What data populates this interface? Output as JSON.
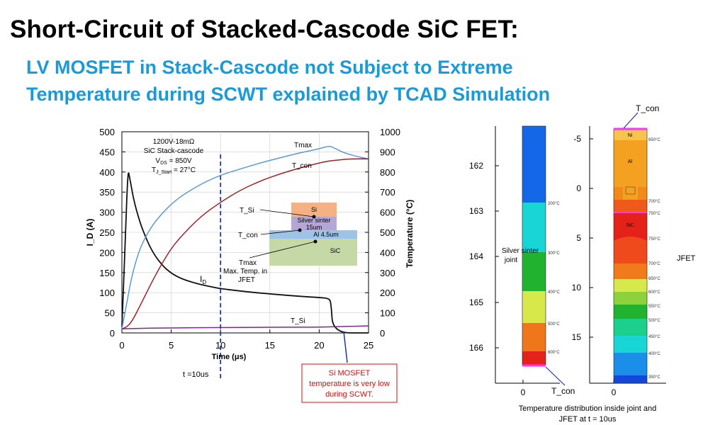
{
  "slide": {
    "title": "Short-Circuit of Stacked-Cascode SiC FET:",
    "subtitle_line1": "LV MOSFET in Stack-Cascode not Subject to Extreme",
    "subtitle_line2": "Temperature during SCWT explained by TCAD Simulation"
  },
  "colors": {
    "title": "#000000",
    "subtitle": "#1a9bd7",
    "id_curve": "#111111",
    "tmax_curve": "#5b9bd5",
    "tcon_curve": "#a0202a",
    "tsi_curve": "#7a2a8a",
    "marker_line": "#2233aa",
    "callout": "#d01010"
  },
  "chart_data": {
    "type": "line",
    "xlabel": "Time (μs)",
    "ylabel_left": "I_D (A)",
    "ylabel_right": "Temperature (°C)",
    "xlim": [
      0,
      25
    ],
    "ylim_left": [
      0,
      500
    ],
    "ylim_right": [
      0,
      1000
    ],
    "xticks": [
      0,
      5,
      10,
      15,
      20,
      25
    ],
    "yticks_left": [
      0,
      50,
      100,
      150,
      200,
      250,
      300,
      350,
      400,
      450,
      500
    ],
    "yticks_right": [
      0,
      100,
      200,
      300,
      400,
      500,
      600,
      700,
      800,
      900,
      1000
    ],
    "series": [
      {
        "name": "I_D",
        "axis": "left",
        "x": [
          0,
          0.3,
          0.6,
          0.8,
          1.2,
          1.7,
          2.2,
          3,
          4,
          5,
          6,
          7,
          8,
          9,
          10,
          12,
          14,
          16,
          18,
          20,
          21,
          21.2,
          21.4,
          25
        ],
        "y": [
          15,
          200,
          408,
          385,
          330,
          285,
          250,
          205,
          170,
          148,
          135,
          127,
          120,
          115,
          110,
          104,
          99,
          95,
          91,
          88,
          86,
          75,
          0,
          0
        ]
      },
      {
        "name": "Tmax",
        "axis": "right",
        "x": [
          0,
          0.5,
          1,
          1.5,
          2,
          3,
          4,
          5,
          6,
          8,
          10,
          12,
          14,
          16,
          18,
          20,
          21,
          21.5,
          22.5,
          24,
          25
        ],
        "y": [
          20,
          150,
          280,
          370,
          440,
          530,
          590,
          640,
          680,
          740,
          785,
          815,
          845,
          870,
          895,
          915,
          930,
          920,
          895,
          875,
          865
        ]
      },
      {
        "name": "T_con",
        "axis": "right",
        "x": [
          0,
          0.5,
          1,
          2,
          3,
          4,
          5,
          6,
          8,
          10,
          12,
          14,
          16,
          18,
          20,
          21,
          22,
          23,
          25
        ],
        "y": [
          20,
          30,
          55,
          150,
          250,
          340,
          420,
          480,
          580,
          650,
          710,
          755,
          790,
          820,
          845,
          855,
          860,
          865,
          865
        ]
      },
      {
        "name": "T_Si",
        "axis": "right",
        "x": [
          0,
          1,
          5,
          10,
          15,
          20,
          21,
          25
        ],
        "y": [
          20,
          22,
          25,
          27,
          28,
          29,
          30,
          35
        ]
      }
    ],
    "curve_labels": {
      "tmax": "Tmax",
      "tcon": "T_con",
      "id": "I",
      "id_sub": "D",
      "tsi": "T_Si"
    },
    "spec_box": {
      "line1": "1200V-18mΩ",
      "line2": "SiC Stack-cascode",
      "line3": "V",
      "line3_sub": "DS",
      "line3_rest": " = 850V",
      "line4": "T",
      "line4_sub": "J_Start",
      "line4_rest": " = 27°C"
    },
    "marker": {
      "x": 10,
      "label": "t =10us"
    },
    "callout": {
      "line1": "Si MOSFET",
      "line2": "temperature is very low",
      "line3": "during SCWT."
    },
    "inset_stack": {
      "layers": [
        "Si",
        "Silver sinter",
        "15um",
        "Al 4.5um",
        "SiC"
      ],
      "labels": [
        "T_Si",
        "T_con",
        "Tmax",
        "Max. Temp. in",
        "JFET"
      ]
    }
  },
  "joint_profile": {
    "yticks": [
      162,
      163,
      164,
      165,
      166
    ],
    "xtick": "0",
    "label": [
      "Silver sinter",
      "joint"
    ],
    "bands": [
      {
        "color": "#1468e8"
      },
      {
        "color": "#19d6d6"
      },
      {
        "color": "#21b330"
      },
      {
        "color": "#d6e84a"
      },
      {
        "color": "#f0761c"
      },
      {
        "color": "#e52219"
      }
    ],
    "temps": [
      "200°C",
      "300°C",
      "400°C",
      "500°C",
      "600°C"
    ],
    "tcon_label": "T_con"
  },
  "jfet_profile": {
    "yticks": [
      "-5",
      "0",
      "5",
      "10",
      "15"
    ],
    "xtick": "0",
    "tcon_label": "T_con",
    "label": "JFET",
    "layers": [
      "Ni",
      "Al",
      "SiC"
    ],
    "temps": [
      "650°C",
      "700°C",
      "750°C",
      "750°C",
      "700°C",
      "650°C",
      "600°C",
      "550°C",
      "500°C",
      "450°C",
      "400°C",
      "350°C"
    ]
  },
  "figure_caption": [
    "Temperature distribution inside joint and",
    "JFET at t = 10us"
  ]
}
